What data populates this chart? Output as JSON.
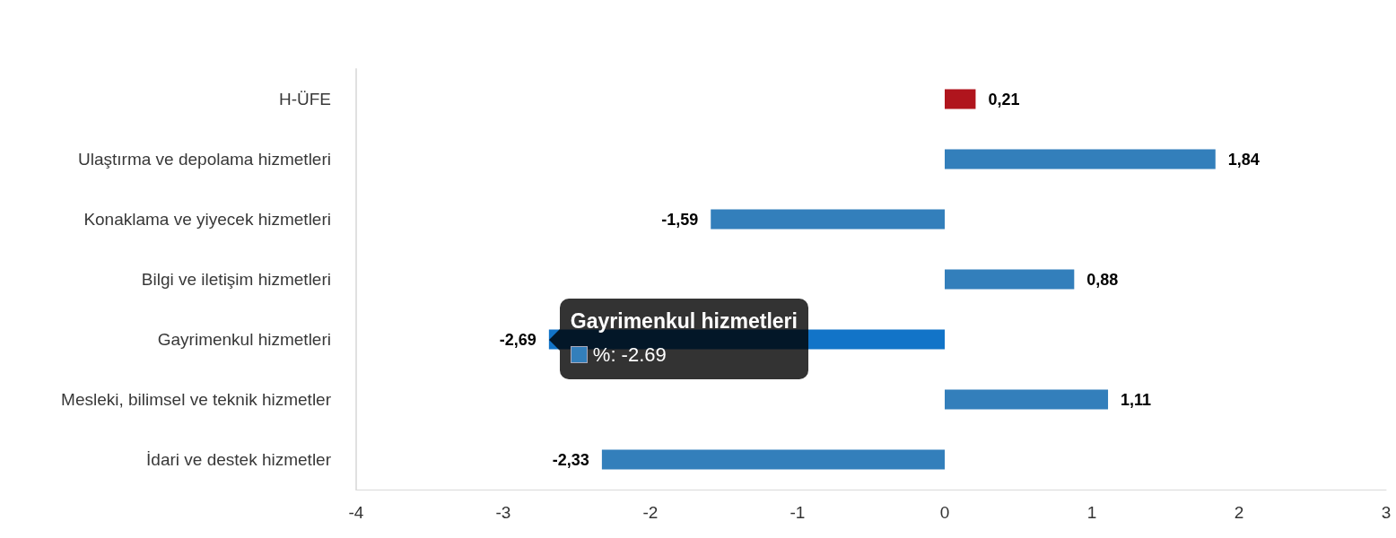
{
  "chart_data": {
    "type": "bar",
    "orientation": "horizontal",
    "categories": [
      "H-ÜFE",
      "Ulaştırma ve depolama hizmetleri",
      "Konaklama ve yiyecek hizmetleri",
      "Bilgi ve iletişim hizmetleri",
      "Gayrimenkul hizmetleri",
      "Mesleki, bilimsel ve teknik hizmetler",
      "İdari ve destek hizmetler"
    ],
    "values": [
      0.21,
      1.84,
      -1.59,
      0.88,
      -2.69,
      1.11,
      -2.33
    ],
    "value_labels": [
      "0,21",
      "1,84",
      "-1,59",
      "0,88",
      "-2,69",
      "1,11",
      "-2,33"
    ],
    "color": "#337fbb",
    "colors": [
      "#b0151d",
      "#337fbb",
      "#337fbb",
      "#337fbb",
      "#1274c8",
      "#337fbb",
      "#337fbb"
    ],
    "xlim": [
      -4,
      3
    ],
    "xticks": [
      -4,
      -3,
      -2,
      -1,
      0,
      1,
      2,
      3
    ],
    "grid": false,
    "annotations": [
      {
        "text": "Gayrimenkul hizmetleri",
        "x": -2.69,
        "y": "Gayrimenkul hizmetleri"
      },
      {
        "text": "%: -2.69",
        "x": -2.69,
        "y": "Gayrimenkul hizmetleri"
      }
    ]
  }
}
